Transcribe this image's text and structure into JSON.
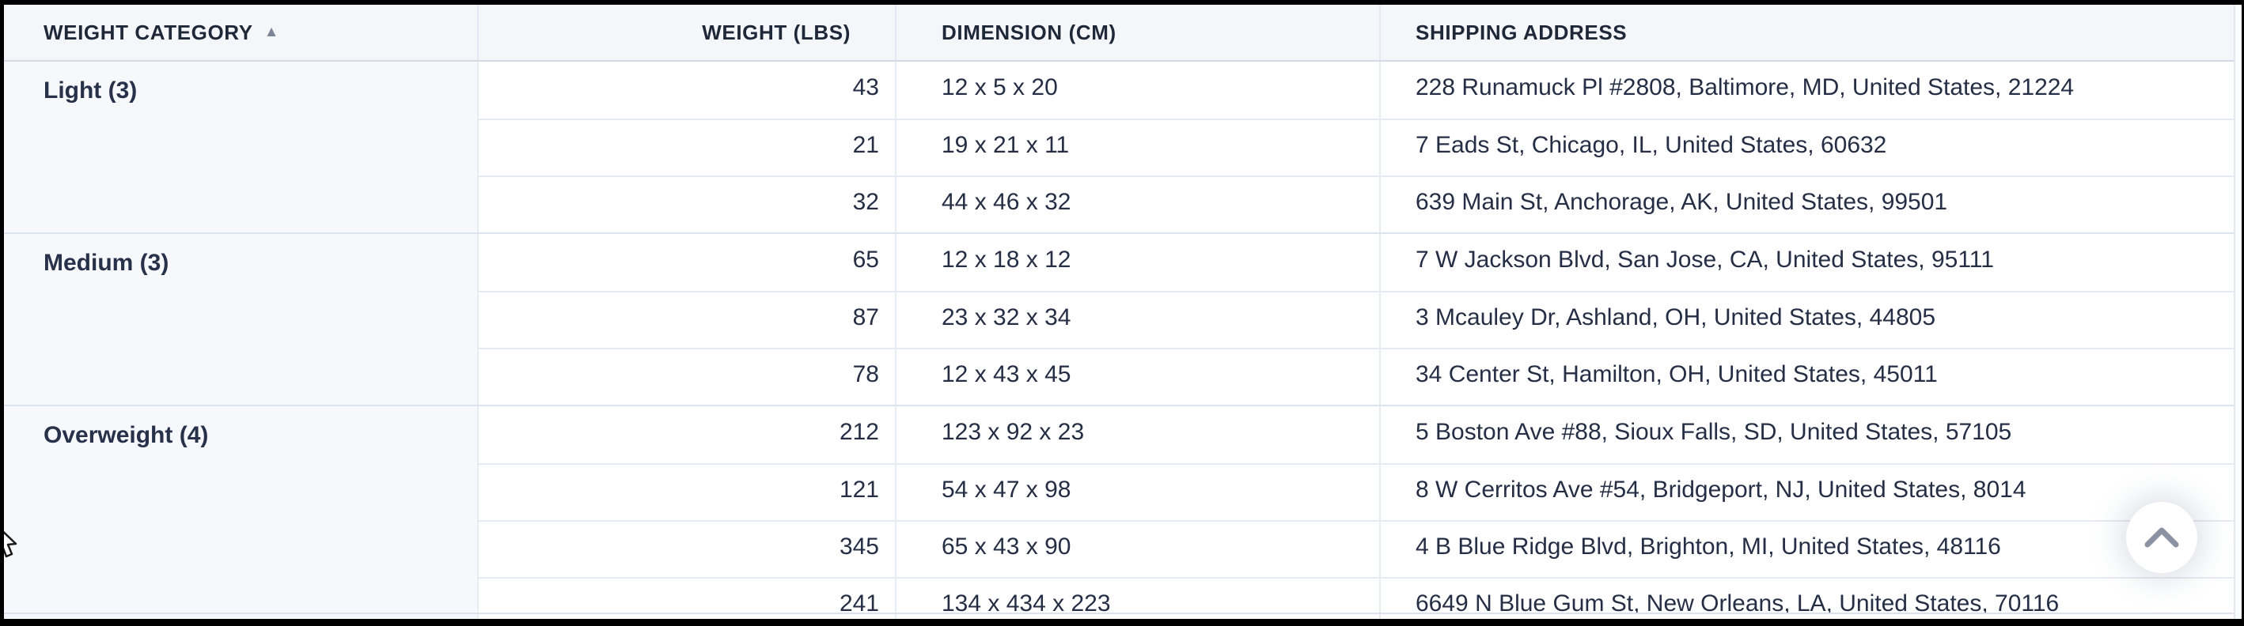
{
  "table": {
    "columns": [
      {
        "label": "WEIGHT CATEGORY",
        "sorted": "ascending"
      },
      {
        "label": "WEIGHT (LBS)"
      },
      {
        "label": "DIMENSION (CM)"
      },
      {
        "label": "SHIPPING ADDRESS"
      }
    ],
    "sort_icon": "▲",
    "groups": [
      {
        "category": "Light (3)",
        "rows": [
          {
            "weight": "43",
            "dimension": "12 x 5 x 20",
            "address": "228 Runamuck Pl #2808, Baltimore, MD, United States, 21224"
          },
          {
            "weight": "21",
            "dimension": "19 x 21 x 11",
            "address": "7 Eads St, Chicago, IL, United States, 60632"
          },
          {
            "weight": "32",
            "dimension": "44 x 46 x 32",
            "address": "639 Main St, Anchorage, AK, United States, 99501"
          }
        ]
      },
      {
        "category": "Medium (3)",
        "rows": [
          {
            "weight": "65",
            "dimension": "12 x 18 x 12",
            "address": "7 W Jackson Blvd, San Jose, CA, United States, 95111"
          },
          {
            "weight": "87",
            "dimension": "23 x 32 x 34",
            "address": "3 Mcauley Dr, Ashland, OH, United States, 44805"
          },
          {
            "weight": "78",
            "dimension": "12 x 43 x 45",
            "address": "34 Center St, Hamilton, OH, United States, 45011"
          }
        ]
      },
      {
        "category": "Overweight (4)",
        "rows": [
          {
            "weight": "212",
            "dimension": "123 x 92 x 23",
            "address": "5 Boston Ave #88, Sioux Falls, SD, United States, 57105"
          },
          {
            "weight": "121",
            "dimension": "54 x 47 x 98",
            "address": "8 W Cerritos Ave #54, Bridgeport, NJ, United States, 8014"
          },
          {
            "weight": "345",
            "dimension": "65 x 43 x 90",
            "address": "4 B Blue Ridge Blvd, Brighton, MI, United States, 48116"
          },
          {
            "weight": "241",
            "dimension": "134 x 434 x 223",
            "address": "6649 N Blue Gum St, New Orleans, LA, United States, 70116"
          }
        ]
      }
    ]
  },
  "scroll_top_button": {
    "icon": "chevron-up"
  },
  "colors": {
    "header_bg": "#f4f6fa",
    "category_bg": "#f7f8fc",
    "text": "#252e44",
    "divider": "#e6eaf2",
    "group_divider": "#dee4ee",
    "sort_icon": "#7c8495",
    "chevron": "#8c92a2"
  }
}
